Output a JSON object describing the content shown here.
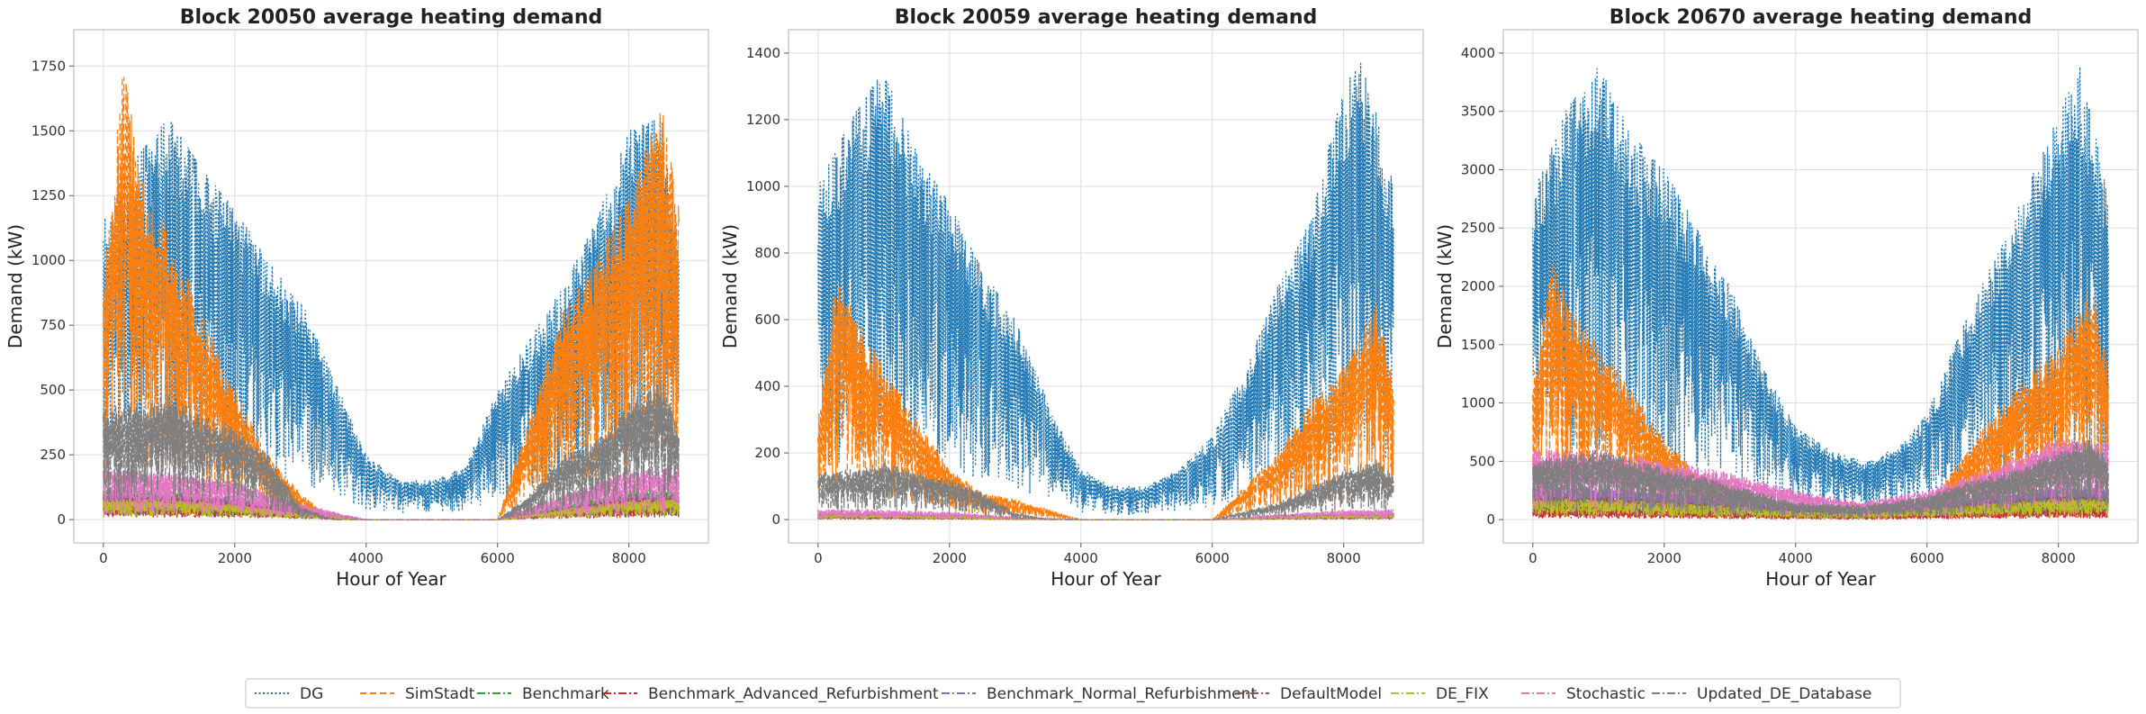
{
  "colors": {
    "DG": "#1f77b4",
    "SimStadt": "#ff7f0e",
    "Benchmark": "#2ca02c",
    "Benchmark_Advanced_Refurbishment": "#d62728",
    "Benchmark_Normal_Refurbishment": "#9467bd",
    "DefaultModel": "#8c564b",
    "DE_FIX": "#bcbd22",
    "Stochastic": "#e377c2",
    "Updated_DE_Database": "#7f7f7f"
  },
  "legend": {
    "placement": "bottom-center",
    "items": [
      {
        "label": "DG",
        "style": "dotted"
      },
      {
        "label": "SimStadt",
        "style": "dashed"
      },
      {
        "label": "Benchmark",
        "style": "dashdot"
      },
      {
        "label": "Benchmark_Advanced_Refurbishment",
        "style": "dashdot"
      },
      {
        "label": "Benchmark_Normal_Refurbishment",
        "style": "dashdot"
      },
      {
        "label": "DefaultModel",
        "style": "dashdot"
      },
      {
        "label": "DE_FIX",
        "style": "dashdot"
      },
      {
        "label": "Stochastic",
        "style": "dashdot"
      },
      {
        "label": "Updated_DE_Database",
        "style": "dashdot"
      }
    ]
  },
  "chart_data": [
    {
      "type": "line",
      "title": "Block 20050 average heating demand",
      "xlabel": "Hour of Year",
      "ylabel": "Demand (kW)",
      "xlim": [
        -450,
        9210
      ],
      "ylim": [
        -90,
        1890
      ],
      "xticks": [
        0,
        2000,
        4000,
        6000,
        8000
      ],
      "yticks": [
        0,
        250,
        500,
        750,
        1000,
        1250,
        1500,
        1750
      ],
      "grid": true,
      "series": [
        {
          "name": "DG",
          "x": [
            0,
            500,
            1000,
            1500,
            2000,
            2500,
            3000,
            3500,
            4000,
            4500,
            5000,
            5500,
            6000,
            6500,
            7000,
            7500,
            8000,
            8500,
            8760
          ],
          "y": [
            1150,
            1400,
            1550,
            1350,
            1200,
            1000,
            850,
            550,
            250,
            150,
            150,
            200,
            500,
            700,
            900,
            1150,
            1500,
            1550,
            1100
          ]
        },
        {
          "name": "SimStadt",
          "x": [
            0,
            300,
            600,
            1000,
            1500,
            2000,
            2500,
            3000,
            3500,
            4000,
            5000,
            6000,
            6500,
            7000,
            7500,
            8000,
            8500,
            8760
          ],
          "y": [
            900,
            1750,
            1300,
            1100,
            800,
            500,
            250,
            100,
            0,
            0,
            0,
            0,
            400,
            800,
            1000,
            1250,
            1600,
            1200
          ]
        },
        {
          "name": "Benchmark",
          "x": [
            0,
            1000,
            2000,
            3000,
            4000,
            6000,
            7000,
            8000,
            8760
          ],
          "y": [
            120,
            110,
            90,
            40,
            0,
            0,
            60,
            110,
            120
          ]
        },
        {
          "name": "Benchmark_Advanced_Refurbishment",
          "x": [
            0,
            1000,
            2000,
            3000,
            4000,
            6000,
            7000,
            8000,
            8760
          ],
          "y": [
            60,
            55,
            45,
            20,
            0,
            0,
            30,
            55,
            60
          ]
        },
        {
          "name": "Benchmark_Normal_Refurbishment",
          "x": [
            0,
            1000,
            2000,
            3000,
            4000,
            6000,
            7000,
            8000,
            8760
          ],
          "y": [
            100,
            95,
            80,
            35,
            0,
            0,
            50,
            95,
            100
          ]
        },
        {
          "name": "DefaultModel",
          "x": [
            0,
            1000,
            2000,
            3000,
            4000,
            6000,
            7000,
            8000,
            8760
          ],
          "y": [
            90,
            85,
            70,
            30,
            0,
            0,
            45,
            85,
            90
          ]
        },
        {
          "name": "DE_FIX",
          "x": [
            0,
            1000,
            2000,
            3000,
            4000,
            6000,
            7000,
            8000,
            8760
          ],
          "y": [
            80,
            75,
            60,
            25,
            0,
            0,
            40,
            75,
            80
          ]
        },
        {
          "name": "Stochastic",
          "x": [
            0,
            1000,
            2000,
            3000,
            4000,
            6000,
            7000,
            8000,
            8760
          ],
          "y": [
            200,
            180,
            150,
            60,
            0,
            0,
            100,
            190,
            200
          ]
        },
        {
          "name": "Updated_DE_Database",
          "x": [
            0,
            500,
            1000,
            1500,
            2000,
            2500,
            3000,
            3500,
            6000,
            6500,
            7000,
            7500,
            8000,
            8500,
            8760
          ],
          "y": [
            430,
            450,
            480,
            400,
            350,
            250,
            50,
            0,
            0,
            100,
            250,
            300,
            450,
            550,
            350
          ]
        }
      ]
    },
    {
      "type": "line",
      "title": "Block 20059 average heating demand",
      "xlabel": "Hour of Year",
      "ylabel": "Demand (kW)",
      "xlim": [
        -450,
        9210
      ],
      "ylim": [
        -70,
        1470
      ],
      "xticks": [
        0,
        2000,
        4000,
        6000,
        8000
      ],
      "yticks": [
        0,
        200,
        400,
        600,
        800,
        1000,
        1200,
        1400
      ],
      "grid": true,
      "series": [
        {
          "name": "DG",
          "x": [
            0,
            500,
            1000,
            1500,
            2000,
            2500,
            3000,
            3500,
            4000,
            4500,
            5000,
            5500,
            6000,
            6500,
            7000,
            7500,
            8000,
            8300,
            8760
          ],
          "y": [
            1000,
            1200,
            1350,
            1100,
            950,
            750,
            600,
            350,
            150,
            100,
            100,
            150,
            250,
            450,
            700,
            900,
            1300,
            1380,
            1000
          ]
        },
        {
          "name": "SimStadt",
          "x": [
            0,
            300,
            600,
            1000,
            1500,
            2000,
            2500,
            3000,
            4000,
            6000,
            7000,
            7500,
            8000,
            8500,
            8760
          ],
          "y": [
            300,
            750,
            600,
            450,
            300,
            150,
            80,
            60,
            0,
            0,
            200,
            350,
            450,
            650,
            400
          ]
        },
        {
          "name": "Benchmark",
          "x": [
            0,
            1000,
            2000,
            3000,
            4000,
            6000,
            7000,
            8000,
            8760
          ],
          "y": [
            20,
            18,
            15,
            5,
            0,
            0,
            10,
            18,
            20
          ]
        },
        {
          "name": "Benchmark_Advanced_Refurbishment",
          "x": [
            0,
            1000,
            2000,
            3000,
            4000,
            6000,
            7000,
            8000,
            8760
          ],
          "y": [
            10,
            9,
            7,
            3,
            0,
            0,
            5,
            9,
            10
          ]
        },
        {
          "name": "Benchmark_Normal_Refurbishment",
          "x": [
            0,
            1000,
            2000,
            3000,
            4000,
            6000,
            7000,
            8000,
            8760
          ],
          "y": [
            15,
            14,
            11,
            4,
            0,
            0,
            8,
            14,
            15
          ]
        },
        {
          "name": "DefaultModel",
          "x": [
            0,
            1000,
            2000,
            3000,
            4000,
            6000,
            7000,
            8000,
            8760
          ],
          "y": [
            12,
            11,
            9,
            3,
            0,
            0,
            6,
            11,
            12
          ]
        },
        {
          "name": "DE_FIX",
          "x": [
            0,
            1000,
            2000,
            3000,
            4000,
            6000,
            7000,
            8000,
            8760
          ],
          "y": [
            14,
            13,
            10,
            4,
            0,
            0,
            7,
            13,
            14
          ]
        },
        {
          "name": "Stochastic",
          "x": [
            0,
            1000,
            2000,
            3000,
            4000,
            6000,
            7000,
            8000,
            8760
          ],
          "y": [
            30,
            28,
            22,
            8,
            0,
            0,
            15,
            28,
            30
          ]
        },
        {
          "name": "Updated_DE_Database",
          "x": [
            0,
            500,
            1000,
            1500,
            2000,
            2500,
            3000,
            3500,
            6000,
            7000,
            7500,
            8000,
            8500,
            8760
          ],
          "y": [
            140,
            150,
            170,
            140,
            120,
            80,
            20,
            0,
            0,
            50,
            100,
            150,
            180,
            130
          ]
        }
      ]
    },
    {
      "type": "line",
      "title": "Block 20670 average heating demand",
      "xlabel": "Hour of Year",
      "ylabel": "Demand (kW)",
      "xlim": [
        -450,
        9210
      ],
      "ylim": [
        -200,
        4200
      ],
      "xticks": [
        0,
        2000,
        4000,
        6000,
        8000
      ],
      "yticks": [
        0,
        500,
        1000,
        1500,
        2000,
        2500,
        3000,
        3500,
        4000
      ],
      "grid": true,
      "series": [
        {
          "name": "DG",
          "x": [
            0,
            500,
            1000,
            1500,
            2000,
            2500,
            3000,
            3500,
            4000,
            4500,
            5000,
            5500,
            6000,
            6500,
            7000,
            7500,
            8000,
            8300,
            8760
          ],
          "y": [
            2800,
            3500,
            3900,
            3300,
            3000,
            2500,
            2000,
            1300,
            800,
            600,
            500,
            600,
            900,
            1600,
            2200,
            2800,
            3500,
            3950,
            2800
          ]
        },
        {
          "name": "SimStadt",
          "x": [
            0,
            300,
            600,
            1000,
            1500,
            2000,
            2500,
            3000,
            3500,
            4000,
            6000,
            6500,
            7000,
            7500,
            8000,
            8500,
            8760
          ],
          "y": [
            1200,
            2200,
            1800,
            1500,
            1100,
            700,
            400,
            300,
            150,
            50,
            100,
            500,
            900,
            1200,
            1500,
            2000,
            1300
          ]
        },
        {
          "name": "Benchmark",
          "x": [
            0,
            1000,
            2000,
            3000,
            4000,
            5000,
            6000,
            7000,
            8000,
            8760
          ],
          "y": [
            250,
            250,
            220,
            180,
            120,
            80,
            130,
            200,
            250,
            250
          ]
        },
        {
          "name": "Benchmark_Advanced_Refurbishment",
          "x": [
            0,
            1000,
            2000,
            3000,
            4000,
            5000,
            6000,
            7000,
            8000,
            8760
          ],
          "y": [
            80,
            80,
            70,
            50,
            30,
            20,
            35,
            60,
            80,
            80
          ]
        },
        {
          "name": "Benchmark_Normal_Refurbishment",
          "x": [
            0,
            1000,
            2000,
            3000,
            4000,
            5000,
            6000,
            7000,
            8000,
            8760
          ],
          "y": [
            300,
            280,
            250,
            200,
            130,
            90,
            150,
            230,
            290,
            300
          ]
        },
        {
          "name": "DefaultModel",
          "x": [
            0,
            1000,
            2000,
            3000,
            4000,
            5000,
            6000,
            7000,
            8000,
            8760
          ],
          "y": [
            200,
            190,
            170,
            130,
            80,
            60,
            100,
            160,
            200,
            200
          ]
        },
        {
          "name": "DE_FIX",
          "x": [
            0,
            1000,
            2000,
            3000,
            4000,
            5000,
            6000,
            7000,
            8000,
            8760
          ],
          "y": [
            180,
            170,
            150,
            120,
            70,
            50,
            90,
            140,
            180,
            180
          ]
        },
        {
          "name": "Stochastic",
          "x": [
            0,
            1000,
            2000,
            3000,
            4000,
            5000,
            6000,
            7000,
            8000,
            8760
          ],
          "y": [
            600,
            580,
            500,
            400,
            250,
            150,
            250,
            450,
            700,
            650
          ]
        },
        {
          "name": "Updated_DE_Database",
          "x": [
            0,
            500,
            1000,
            1500,
            2000,
            2500,
            3000,
            3500,
            4000,
            5000,
            6000,
            6500,
            7000,
            7500,
            8000,
            8500,
            8760
          ],
          "y": [
            500,
            550,
            600,
            520,
            450,
            380,
            300,
            220,
            150,
            120,
            200,
            300,
            380,
            450,
            600,
            700,
            500
          ]
        }
      ]
    }
  ]
}
